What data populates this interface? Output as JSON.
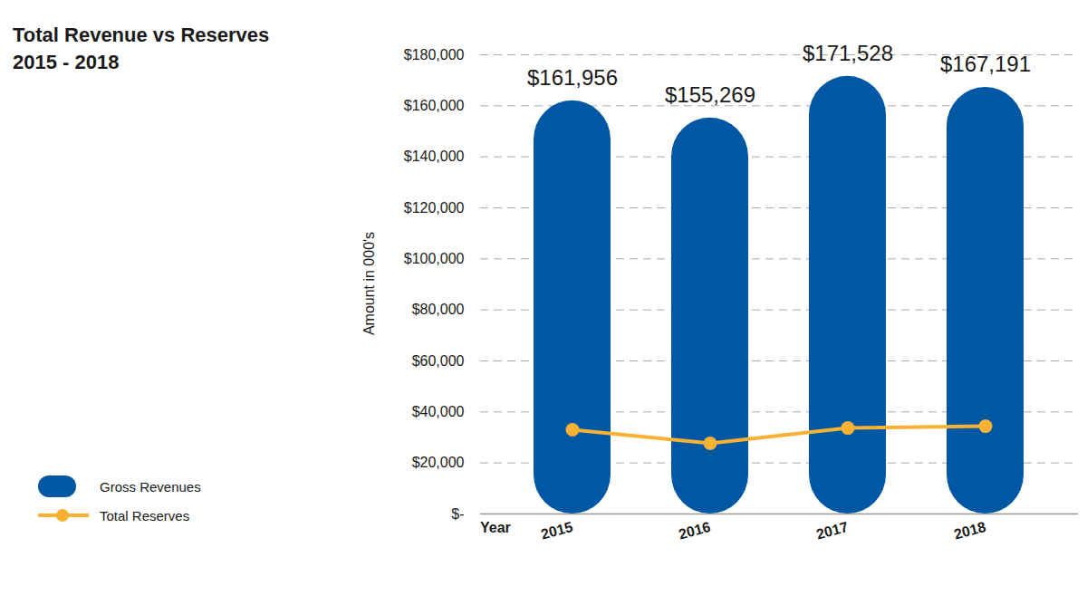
{
  "chart_data": {
    "type": "bar",
    "title": "Total Revenue vs Reserves",
    "subtitle": "2015 - 2018",
    "x_label": "Year",
    "y_label": "Amount in 000's",
    "categories": [
      "2015",
      "2016",
      "2017",
      "2018"
    ],
    "series": [
      {
        "name": "Gross Revenues",
        "type": "bar",
        "color": "#0057a4",
        "values": [
          161956,
          155269,
          171528,
          167191
        ],
        "value_labels": [
          "$161,956",
          "$155,269",
          "$171,528",
          "$167,191"
        ]
      },
      {
        "name": "Total Reserves",
        "type": "line",
        "color": "#f8b133",
        "marker": "circle",
        "values": [
          33000,
          27700,
          33700,
          34400
        ]
      }
    ],
    "ylim": [
      0,
      180000
    ],
    "yticks": [
      {
        "value": 0,
        "label": "$-"
      },
      {
        "value": 20000,
        "label": "$20,000"
      },
      {
        "value": 40000,
        "label": "$40,000"
      },
      {
        "value": 60000,
        "label": "$60,000"
      },
      {
        "value": 80000,
        "label": "$80,000"
      },
      {
        "value": 100000,
        "label": "$100,000"
      },
      {
        "value": 120000,
        "label": "$120,000"
      },
      {
        "value": 140000,
        "label": "$140,000"
      },
      {
        "value": 160000,
        "label": "$160,000"
      },
      {
        "value": 180000,
        "label": "$180,000"
      }
    ],
    "grid": true,
    "data_labels": true,
    "legend": "bottom-left"
  }
}
